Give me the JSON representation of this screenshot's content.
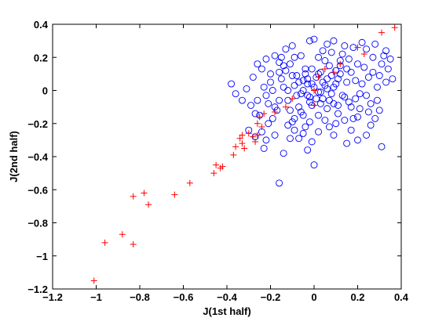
{
  "chart_data": {
    "type": "scatter",
    "xlabel": "J(1st half)",
    "ylabel": "J(2nd half)",
    "xlim": [
      -1.2,
      0.4
    ],
    "ylim": [
      -1.2,
      0.4
    ],
    "xticks": [
      -1.2,
      -1,
      -0.8,
      -0.6,
      -0.4,
      -0.2,
      0,
      0.2,
      0.4
    ],
    "yticks": [
      -1.2,
      -1,
      -0.8,
      -0.6,
      -0.4,
      -0.2,
      0,
      0.2,
      0.4
    ],
    "xtick_labels": [
      "−1.2",
      "−1",
      "−0.8",
      "−0.6",
      "−0.4",
      "−0.2",
      "0",
      "0.2",
      "0.4"
    ],
    "ytick_labels": [
      "−1.2",
      "−1",
      "−0.8",
      "−0.6",
      "−0.4",
      "−0.2",
      "0",
      "0.2",
      "0.4"
    ],
    "grid": false,
    "series": [
      {
        "marker": "circle",
        "color": "#0000ff",
        "points": [
          [
            0.0,
            0.02
          ],
          [
            0.02,
            -0.01
          ],
          [
            -0.03,
            0.04
          ],
          [
            0.05,
            0.03
          ],
          [
            -0.02,
            -0.04
          ],
          [
            0.04,
            -0.05
          ],
          [
            -0.05,
            0.0
          ],
          [
            0.06,
            0.07
          ],
          [
            0.01,
            0.08
          ],
          [
            -0.07,
            0.05
          ],
          [
            0.08,
            -0.02
          ],
          [
            -0.08,
            -0.03
          ],
          [
            0.03,
            0.11
          ],
          [
            -0.01,
            -0.09
          ],
          [
            0.1,
            0.04
          ],
          [
            -0.1,
            0.09
          ],
          [
            0.09,
            -0.08
          ],
          [
            -0.04,
            0.13
          ],
          [
            0.12,
            0.1
          ],
          [
            -0.12,
            -0.06
          ],
          [
            0.14,
            -0.04
          ],
          [
            -0.14,
            0.02
          ],
          [
            0.07,
            0.15
          ],
          [
            -0.06,
            -0.13
          ],
          [
            0.15,
            0.13
          ],
          [
            -0.16,
            0.11
          ],
          [
            0.17,
            -0.1
          ],
          [
            0.02,
            -0.15
          ],
          [
            -0.11,
            0.16
          ],
          [
            0.19,
            0.06
          ],
          [
            -0.18,
            -0.1
          ],
          [
            0.11,
            -0.14
          ],
          [
            0.05,
            0.18
          ],
          [
            -0.2,
            0.05
          ],
          [
            0.21,
            -0.02
          ],
          [
            0.16,
            0.19
          ],
          [
            -0.09,
            -0.17
          ],
          [
            0.23,
            0.14
          ],
          [
            -0.22,
            -0.03
          ],
          [
            0.13,
            0.22
          ],
          [
            0.25,
            0.08
          ],
          [
            -0.24,
            0.13
          ],
          [
            0.2,
            -0.16
          ],
          [
            -0.15,
            0.2
          ],
          [
            0.27,
            0.2
          ],
          [
            0.26,
            -0.08
          ],
          [
            -0.27,
            -0.14
          ],
          [
            0.29,
            0.02
          ],
          [
            0.18,
            0.26
          ],
          [
            0.31,
            0.16
          ],
          [
            0.0,
            0.31
          ],
          [
            -0.02,
            0.3
          ],
          [
            0.06,
            0.28
          ],
          [
            -0.1,
            0.27
          ],
          [
            0.09,
            0.3
          ],
          [
            0.22,
            0.29
          ],
          [
            0.28,
            0.28
          ],
          [
            0.33,
            0.24
          ],
          [
            0.24,
            0.25
          ],
          [
            0.3,
            -0.12
          ],
          [
            0.26,
            -0.21
          ],
          [
            0.24,
            -0.27
          ],
          [
            0.31,
            -0.34
          ],
          [
            0.2,
            -0.3
          ],
          [
            0.07,
            -0.22
          ],
          [
            0.02,
            -0.25
          ],
          [
            -0.04,
            -0.22
          ],
          [
            -0.09,
            -0.24
          ],
          [
            -0.12,
            -0.21
          ],
          [
            0.0,
            -0.45
          ],
          [
            -0.03,
            -0.36
          ],
          [
            -0.14,
            -0.38
          ],
          [
            -0.16,
            -0.56
          ],
          [
            -0.11,
            -0.29
          ],
          [
            -0.19,
            -0.17
          ],
          [
            -0.21,
            -0.2
          ],
          [
            -0.25,
            -0.15
          ],
          [
            -0.29,
            -0.09
          ],
          [
            -0.33,
            -0.06
          ],
          [
            -0.38,
            0.04
          ],
          [
            -0.36,
            -0.02
          ],
          [
            -0.31,
            0.01
          ],
          [
            -0.28,
            0.08
          ],
          [
            -0.26,
            0.16
          ],
          [
            -0.22,
            0.19
          ],
          [
            -0.18,
            0.21
          ],
          [
            -0.19,
            0.0
          ],
          [
            -0.16,
            -0.06
          ],
          [
            -0.13,
            0.12
          ],
          [
            -0.06,
            0.21
          ],
          [
            0.04,
            0.24
          ],
          [
            0.12,
            0.18
          ],
          [
            -0.05,
            0.06
          ],
          [
            0.01,
            -0.05
          ],
          [
            0.09,
            0.02
          ],
          [
            -0.01,
            0.13
          ],
          [
            0.06,
            -0.11
          ],
          [
            -0.08,
            0.09
          ],
          [
            0.13,
            -0.03
          ],
          [
            -0.03,
            -0.03
          ],
          [
            0.15,
            0.05
          ],
          [
            -0.12,
            0.0
          ],
          [
            0.1,
            0.12
          ],
          [
            -0.07,
            -0.1
          ],
          [
            0.04,
            0.05
          ],
          [
            0.16,
            -0.07
          ],
          [
            -0.15,
            0.07
          ],
          [
            0.07,
            -0.06
          ],
          [
            -0.04,
            0.1
          ],
          [
            0.11,
            0.07
          ],
          [
            -0.24,
            -0.25
          ],
          [
            -0.22,
            -0.3
          ],
          [
            -0.27,
            -0.28
          ],
          [
            -0.23,
            -0.35
          ],
          [
            -0.3,
            -0.24
          ],
          [
            0.17,
            0.11
          ],
          [
            0.19,
            -0.05
          ],
          [
            0.22,
            0.04
          ],
          [
            0.24,
            -0.03
          ],
          [
            0.27,
            0.11
          ],
          [
            0.29,
            -0.06
          ],
          [
            0.33,
            0.05
          ],
          [
            0.34,
            0.13
          ],
          [
            0.32,
            0.21
          ],
          [
            0.25,
            -0.13
          ],
          [
            0.21,
            -0.11
          ],
          [
            0.28,
            -0.17
          ],
          [
            -0.2,
            0.1
          ],
          [
            -0.23,
            0.02
          ],
          [
            -0.26,
            -0.06
          ],
          [
            -0.17,
            -0.12
          ],
          [
            -0.21,
            -0.08
          ],
          [
            -0.09,
            0.2
          ],
          [
            -0.13,
            0.25
          ],
          [
            -0.16,
            0.17
          ],
          [
            0.02,
            0.2
          ],
          [
            0.08,
            0.23
          ],
          [
            0.14,
            0.27
          ],
          [
            -0.02,
            -0.19
          ],
          [
            0.05,
            -0.18
          ],
          [
            0.1,
            -0.2
          ],
          [
            0.14,
            -0.18
          ],
          [
            0.17,
            -0.24
          ],
          [
            -0.07,
            -0.29
          ],
          [
            -0.1,
            -0.19
          ],
          [
            -0.05,
            -0.15
          ],
          [
            0.03,
            -0.08
          ],
          [
            -0.01,
            0.04
          ],
          [
            0.03,
            -0.01
          ],
          [
            -0.03,
            0.07
          ],
          [
            0.06,
            0.01
          ],
          [
            -0.06,
            -0.02
          ],
          [
            0.02,
            0.1
          ],
          [
            -0.02,
            -0.07
          ],
          [
            0.08,
            0.09
          ],
          [
            -0.09,
            0.03
          ],
          [
            0.11,
            -0.09
          ],
          [
            -0.11,
            -0.12
          ],
          [
            0.12,
            0.15
          ],
          [
            -0.14,
            0.15
          ],
          [
            0.35,
            0.19
          ],
          [
            0.36,
            0.07
          ],
          [
            0.3,
            0.09
          ],
          [
            0.2,
            0.16
          ],
          [
            0.18,
            -0.17
          ],
          [
            0.09,
            -0.27
          ],
          [
            0.15,
            -0.32
          ],
          [
            -0.01,
            -0.31
          ],
          [
            -0.05,
            -0.26
          ],
          [
            -0.18,
            -0.27
          ]
        ]
      },
      {
        "marker": "plus",
        "color": "#ff0000",
        "points": [
          [
            -1.01,
            -1.15
          ],
          [
            -0.96,
            -0.92
          ],
          [
            -0.88,
            -0.87
          ],
          [
            -0.83,
            -0.93
          ],
          [
            -0.83,
            -0.64
          ],
          [
            -0.78,
            -0.62
          ],
          [
            -0.76,
            -0.69
          ],
          [
            -0.64,
            -0.63
          ],
          [
            -0.57,
            -0.56
          ],
          [
            -0.46,
            -0.5
          ],
          [
            -0.45,
            -0.45
          ],
          [
            -0.43,
            -0.47
          ],
          [
            -0.42,
            -0.46
          ],
          [
            -0.37,
            -0.39
          ],
          [
            -0.36,
            -0.34
          ],
          [
            -0.34,
            -0.29
          ],
          [
            -0.33,
            -0.32
          ],
          [
            -0.33,
            -0.27
          ],
          [
            -0.32,
            -0.35
          ],
          [
            -0.3,
            -0.26
          ],
          [
            -0.28,
            -0.28
          ],
          [
            -0.27,
            -0.31
          ],
          [
            -0.26,
            -0.27
          ],
          [
            -0.26,
            -0.2
          ],
          [
            -0.25,
            -0.16
          ],
          [
            -0.24,
            -0.22
          ],
          [
            -0.23,
            -0.14
          ],
          [
            -0.18,
            -0.13
          ],
          [
            -0.13,
            -0.1
          ],
          [
            -0.1,
            -0.05
          ],
          [
            0.0,
            -0.09
          ],
          [
            0.0,
            0.0
          ],
          [
            0.02,
            0.08
          ],
          [
            0.05,
            0.13
          ],
          [
            0.09,
            0.11
          ],
          [
            0.12,
            0.16
          ],
          [
            0.2,
            0.26
          ],
          [
            0.23,
            0.22
          ],
          [
            0.31,
            0.35
          ],
          [
            0.37,
            0.38
          ]
        ]
      }
    ]
  }
}
